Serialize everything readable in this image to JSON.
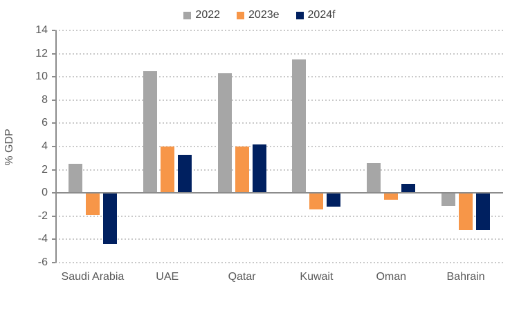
{
  "chart_data": {
    "type": "bar",
    "title": "",
    "ylabel": "% GDP",
    "xlabel": "",
    "categories": [
      "Saudi Arabia",
      "UAE",
      "Qatar",
      "Kuwait",
      "Oman",
      "Bahrain"
    ],
    "series": [
      {
        "name": "2022",
        "color": "#a6a6a6",
        "values": [
          2.5,
          10.5,
          10.3,
          11.5,
          2.6,
          -1.1
        ]
      },
      {
        "name": "2023e",
        "color": "#f79648",
        "values": [
          -1.9,
          4.0,
          4.0,
          -1.4,
          -0.6,
          -3.2
        ]
      },
      {
        "name": "2024f",
        "color": "#002060",
        "values": [
          -4.4,
          3.3,
          4.2,
          -1.2,
          0.8,
          -3.2
        ]
      }
    ],
    "ylim": [
      -6,
      14
    ],
    "ytick_step": 2,
    "ytick_labels": [
      "-6",
      "-4",
      "-2",
      "0",
      "2",
      "4",
      "6",
      "8",
      "10",
      "12",
      "14"
    ],
    "legend_position": "top-center",
    "grid": "dotted-horizontal"
  },
  "colors": {
    "axis_line": "#8c8c8c",
    "gridline": "#c9c9c9",
    "tick_label": "#595959",
    "category_label": "#595959",
    "legend_label": "#404040",
    "background": "#ffffff"
  }
}
